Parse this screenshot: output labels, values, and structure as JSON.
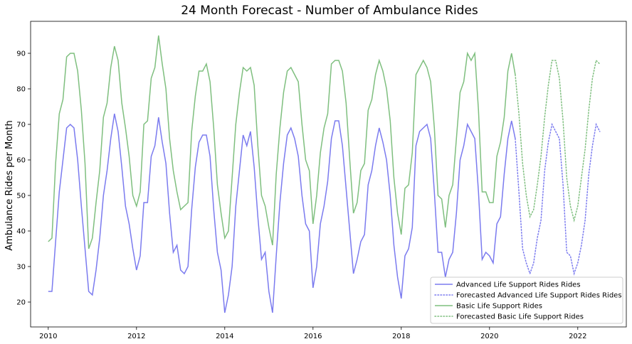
{
  "chart_data": {
    "type": "line",
    "title": "24 Month Forecast - Number of Ambulance Rides",
    "xlabel": "",
    "ylabel": "Ambulance Rides per Month",
    "xlim": [
      2009.6,
      2023.1
    ],
    "ylim": [
      13,
      99
    ],
    "xticks": [
      2010,
      2012,
      2014,
      2016,
      2018,
      2020,
      2022
    ],
    "yticks": [
      20,
      30,
      40,
      50,
      60,
      70,
      80,
      90
    ],
    "grid": false,
    "legend_position": "lower-right",
    "colors": {
      "als": "#7b7bef",
      "bls": "#7fbf7f"
    },
    "series": [
      {
        "name": "Advanced Life Support Rides Rides",
        "style": "solid",
        "color": "#7b7bef",
        "x_start": 2010,
        "x_step": 0.08333,
        "values": [
          23,
          23,
          37,
          51,
          60,
          69,
          70,
          69,
          60,
          47,
          35,
          23,
          22,
          29,
          38,
          50,
          57,
          66,
          73,
          68,
          58,
          47,
          42,
          35,
          29,
          33,
          48,
          48,
          61,
          64,
          72,
          65,
          59,
          45,
          34,
          36,
          29,
          28,
          30,
          46,
          58,
          65,
          67,
          67,
          61,
          46,
          34,
          29,
          17,
          22,
          30,
          47,
          57,
          67,
          64,
          68,
          58,
          44,
          32,
          34,
          23,
          17,
          33,
          48,
          59,
          67,
          69,
          66,
          61,
          50,
          42,
          40,
          24,
          30,
          42,
          47,
          54,
          66,
          71,
          71,
          64,
          52,
          40,
          28,
          32,
          37,
          39,
          53,
          57,
          64,
          69,
          65,
          60,
          50,
          36,
          27,
          21,
          33,
          35,
          41,
          64,
          68,
          69,
          70,
          66,
          51,
          34,
          34,
          27,
          32,
          34,
          45,
          60,
          64,
          70,
          68,
          66,
          51,
          32,
          34,
          33,
          31,
          42,
          44,
          56,
          66,
          71,
          66
        ]
      },
      {
        "name": "Forecasted Advanced Life Support Rides Rides",
        "style": "dotted",
        "color": "#7b7bef",
        "x_start": 2020.583,
        "x_step": 0.08333,
        "values": [
          66,
          51,
          35,
          31,
          28,
          31,
          38,
          43,
          57,
          65,
          70,
          68,
          66,
          53,
          34,
          33,
          28,
          31,
          36,
          43,
          56,
          64,
          70,
          68
        ]
      },
      {
        "name": "Basic Life Support Rides",
        "style": "solid",
        "color": "#7fbf7f",
        "x_start": 2010,
        "x_step": 0.08333,
        "values": [
          37,
          38,
          59,
          73,
          77,
          89,
          90,
          90,
          85,
          74,
          59,
          35,
          38,
          48,
          57,
          72,
          76,
          86,
          92,
          88,
          76,
          69,
          61,
          50,
          47,
          51,
          70,
          71,
          83,
          86,
          95,
          87,
          80,
          66,
          57,
          51,
          46,
          47,
          48,
          68,
          78,
          85,
          85,
          87,
          82,
          69,
          53,
          45,
          38,
          40,
          55,
          70,
          79,
          86,
          85,
          86,
          81,
          64,
          50,
          47,
          41,
          36,
          56,
          69,
          79,
          85,
          86,
          84,
          82,
          70,
          60,
          57,
          42,
          50,
          62,
          69,
          73,
          87,
          88,
          88,
          85,
          76,
          60,
          45,
          48,
          57,
          59,
          74,
          77,
          84,
          88,
          85,
          80,
          71,
          55,
          45,
          39,
          52,
          53,
          62,
          84,
          86,
          88,
          86,
          82,
          69,
          50,
          49,
          41,
          50,
          53,
          66,
          79,
          82,
          90,
          88,
          90,
          74,
          51,
          51,
          48,
          48,
          61,
          65,
          72,
          85,
          90,
          84
        ]
      },
      {
        "name": "Forecasted Basic Life Support Rides",
        "style": "dotted",
        "color": "#7fbf7f",
        "x_start": 2020.583,
        "x_step": 0.08333,
        "values": [
          84,
          73,
          59,
          50,
          44,
          46,
          53,
          61,
          72,
          81,
          88,
          88,
          83,
          71,
          55,
          47,
          43,
          47,
          55,
          63,
          74,
          83,
          88,
          87
        ]
      }
    ]
  }
}
